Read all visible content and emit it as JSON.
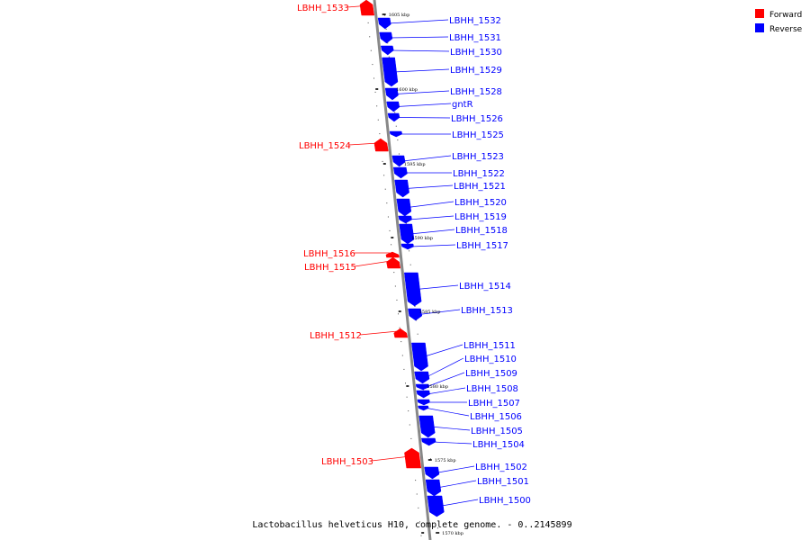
{
  "caption": "Lactobacillus helveticus H10, complete genome. - 0..2145899",
  "legend": [
    {
      "label": "Forward",
      "color": "#ff0000"
    },
    {
      "label": "Reverse",
      "color": "#0000ff"
    }
  ],
  "colors": {
    "forward": "#ff0000",
    "reverse": "#0000ff",
    "backbone": "#888888"
  },
  "ticks": [
    "1605 kbp",
    "1600 kbp",
    "1595 kbp",
    "1590 kbp",
    "1585 kbp",
    "1580 kbp",
    "1575 kbp",
    "1570 kbp"
  ],
  "genes": [
    {
      "label": "LBHH_1533",
      "strand": "forward"
    },
    {
      "label": "LBHH_1532",
      "strand": "reverse"
    },
    {
      "label": "LBHH_1531",
      "strand": "reverse"
    },
    {
      "label": "LBHH_1530",
      "strand": "reverse"
    },
    {
      "label": "LBHH_1529",
      "strand": "reverse"
    },
    {
      "label": "LBHH_1528",
      "strand": "reverse"
    },
    {
      "label": "gntR",
      "strand": "reverse"
    },
    {
      "label": "LBHH_1526",
      "strand": "reverse"
    },
    {
      "label": "LBHH_1525",
      "strand": "reverse"
    },
    {
      "label": "LBHH_1524",
      "strand": "forward"
    },
    {
      "label": "LBHH_1523",
      "strand": "reverse"
    },
    {
      "label": "LBHH_1522",
      "strand": "reverse"
    },
    {
      "label": "LBHH_1521",
      "strand": "reverse"
    },
    {
      "label": "LBHH_1520",
      "strand": "reverse"
    },
    {
      "label": "LBHH_1519",
      "strand": "reverse"
    },
    {
      "label": "LBHH_1518",
      "strand": "reverse"
    },
    {
      "label": "LBHH_1517",
      "strand": "reverse"
    },
    {
      "label": "LBHH_1516",
      "strand": "forward"
    },
    {
      "label": "LBHH_1515",
      "strand": "forward"
    },
    {
      "label": "LBHH_1514",
      "strand": "reverse"
    },
    {
      "label": "LBHH_1513",
      "strand": "reverse"
    },
    {
      "label": "LBHH_1512",
      "strand": "forward"
    },
    {
      "label": "LBHH_1511",
      "strand": "reverse"
    },
    {
      "label": "LBHH_1510",
      "strand": "reverse"
    },
    {
      "label": "LBHH_1509",
      "strand": "reverse"
    },
    {
      "label": "LBHH_1508",
      "strand": "reverse"
    },
    {
      "label": "LBHH_1507",
      "strand": "reverse"
    },
    {
      "label": "LBHH_1506",
      "strand": "reverse"
    },
    {
      "label": "LBHH_1505",
      "strand": "reverse"
    },
    {
      "label": "LBHH_1504",
      "strand": "reverse"
    },
    {
      "label": "LBHH_1503",
      "strand": "forward"
    },
    {
      "label": "LBHH_1502",
      "strand": "reverse"
    },
    {
      "label": "LBHH_1501",
      "strand": "reverse"
    },
    {
      "label": "LBHH_1500",
      "strand": "reverse"
    }
  ]
}
